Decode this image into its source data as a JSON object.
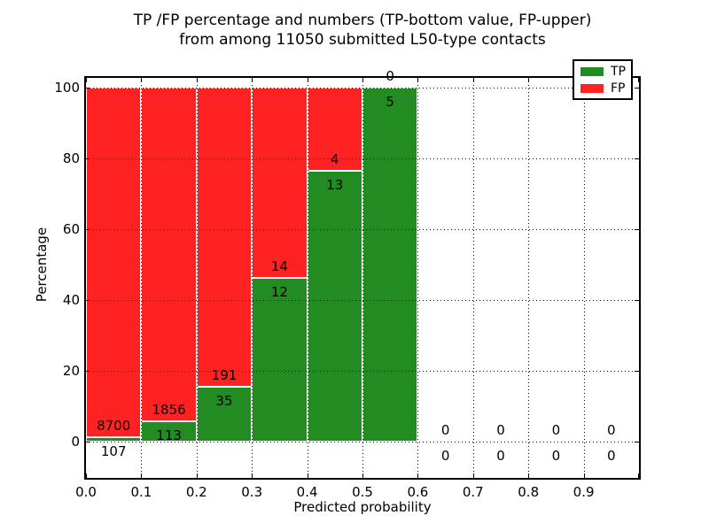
{
  "title": {
    "line1": "TP /FP percentage and numbers (TP-bottom value, FP-upper)",
    "line2": "from among 11050 submitted L50-type contacts"
  },
  "chart_data": {
    "type": "bar",
    "stacked": true,
    "title": "TP /FP percentage and numbers (TP-bottom value, FP-upper)\nfrom among 11050 submitted L50-type contacts",
    "xlabel": "Predicted probability",
    "ylabel": "Percentage",
    "x_tick_labels": [
      "0.0",
      "0.1",
      "0.2",
      "0.3",
      "0.4",
      "0.5",
      "0.6",
      "0.7",
      "0.8",
      "0.9"
    ],
    "y_ticks": [
      0,
      20,
      40,
      60,
      80,
      100
    ],
    "xlim": [
      0.0,
      1.0
    ],
    "ylim": [
      -11,
      103
    ],
    "grid": "dotted black, both axes, drawn above bars",
    "total_submitted": 11050,
    "categories": [
      "0.0-0.1",
      "0.1-0.2",
      "0.2-0.3",
      "0.3-0.4",
      "0.4-0.5",
      "0.5-0.6",
      "0.6-0.7",
      "0.7-0.8",
      "0.8-0.9",
      "0.9-1.0"
    ],
    "series": [
      {
        "name": "TP",
        "counts": [
          107,
          113,
          35,
          12,
          13,
          5,
          0,
          0,
          0,
          0
        ]
      },
      {
        "name": "FP",
        "counts": [
          8700,
          1856,
          191,
          14,
          4,
          0,
          0,
          0,
          0,
          0
        ]
      }
    ],
    "tp_percent": [
      1.2,
      5.7,
      15.5,
      46.2,
      76.5,
      100.0,
      0.0,
      0.0,
      0.0,
      0.0
    ],
    "legend": {
      "position": "upper right",
      "items": [
        {
          "label": "TP",
          "color": "#228B22"
        },
        {
          "label": "FP",
          "color": "#FF2222"
        }
      ]
    }
  },
  "colors": {
    "tp": "#228B22",
    "fp": "#FF2222",
    "grid": "#000000",
    "background": "#FFFFFF"
  }
}
